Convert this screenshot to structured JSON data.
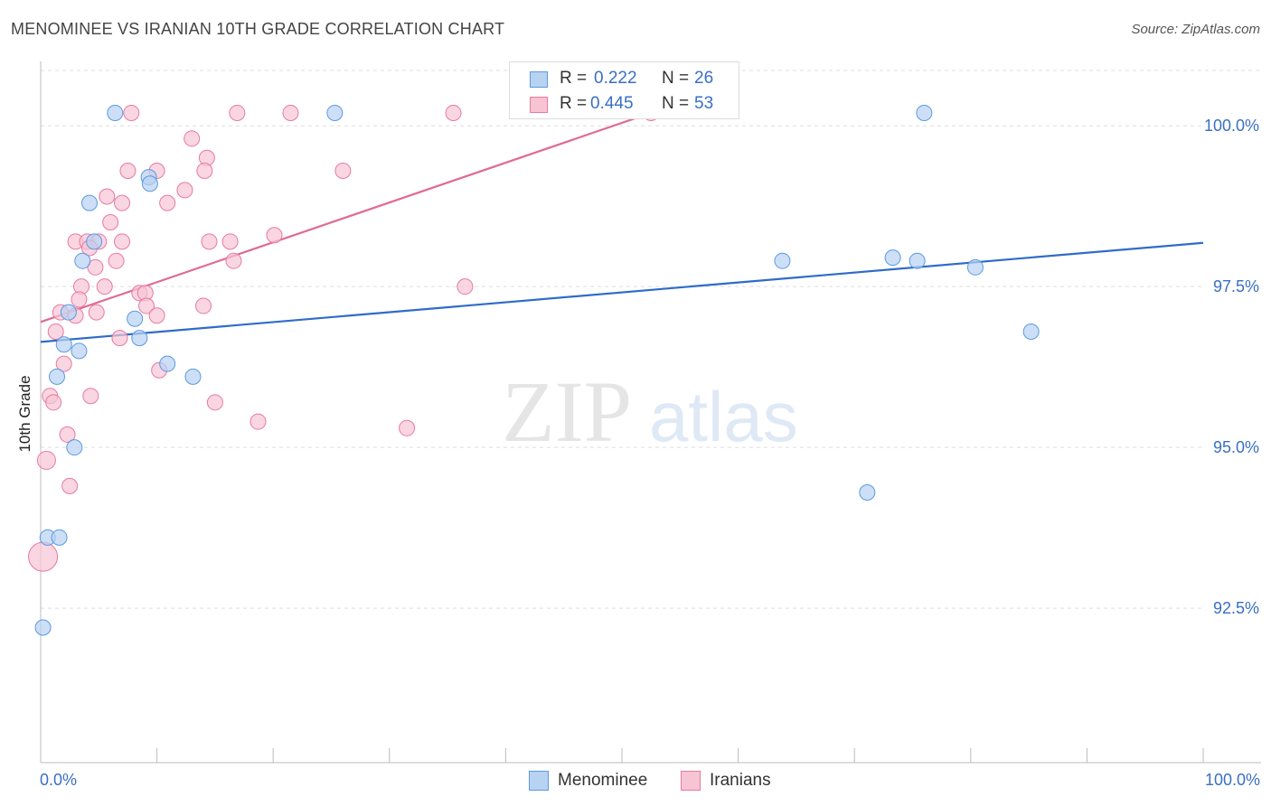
{
  "title": "MENOMINEE VS IRANIAN 10TH GRADE CORRELATION CHART",
  "source": "Source: ZipAtlas.com",
  "watermark": {
    "zip": "ZIP",
    "atlas": "atlas"
  },
  "legend_stats": [
    {
      "r_label": "R =",
      "r_value": "0.222",
      "n_label": "N =",
      "n_value": "26"
    },
    {
      "r_label": "R =",
      "r_value": "0.445",
      "n_label": "N =",
      "n_value": "53"
    }
  ],
  "chart_data": {
    "type": "scatter",
    "title": "MENOMINEE VS IRANIAN 10TH GRADE CORRELATION CHART",
    "xlabel": "",
    "ylabel": "10th Grade",
    "xlim": [
      0,
      100
    ],
    "ylim": [
      90.1,
      101.0
    ],
    "x_tick_labels": [
      "0.0%",
      "100.0%"
    ],
    "y_ticks": [
      92.5,
      95.0,
      97.5,
      100.0
    ],
    "y_tick_labels": [
      "92.5%",
      "95.0%",
      "97.5%",
      "100.0%"
    ],
    "grid": true,
    "legend_position": "bottom",
    "series": [
      {
        "name": "Menominee",
        "color": "#5b9ae0",
        "fill": "#b8d2f2",
        "trend": {
          "x": [
            0,
            100
          ],
          "y": [
            96.64,
            98.18
          ]
        },
        "points": [
          {
            "x": 6.4,
            "y": 100.2
          },
          {
            "x": 25.3,
            "y": 100.2
          },
          {
            "x": 76.0,
            "y": 100.2
          },
          {
            "x": 9.3,
            "y": 99.2
          },
          {
            "x": 9.4,
            "y": 99.1
          },
          {
            "x": 4.2,
            "y": 98.8
          },
          {
            "x": 4.6,
            "y": 98.2
          },
          {
            "x": 3.6,
            "y": 97.9
          },
          {
            "x": 63.8,
            "y": 97.9
          },
          {
            "x": 73.3,
            "y": 97.95
          },
          {
            "x": 75.4,
            "y": 97.9
          },
          {
            "x": 80.4,
            "y": 97.8
          },
          {
            "x": 2.4,
            "y": 97.1
          },
          {
            "x": 8.1,
            "y": 97.0
          },
          {
            "x": 8.5,
            "y": 96.7
          },
          {
            "x": 2.0,
            "y": 96.6
          },
          {
            "x": 3.3,
            "y": 96.5
          },
          {
            "x": 85.2,
            "y": 96.8
          },
          {
            "x": 10.9,
            "y": 96.3
          },
          {
            "x": 13.1,
            "y": 96.1
          },
          {
            "x": 1.4,
            "y": 96.1
          },
          {
            "x": 2.9,
            "y": 95.0
          },
          {
            "x": 71.1,
            "y": 94.3
          },
          {
            "x": 0.6,
            "y": 93.6
          },
          {
            "x": 1.6,
            "y": 93.6
          },
          {
            "x": 0.2,
            "y": 92.2
          }
        ]
      },
      {
        "name": "Iranians",
        "color": "#e87a9f",
        "fill": "#f7c4d4",
        "trend": {
          "x": [
            0,
            52.5
          ],
          "y": [
            96.95,
            100.2
          ]
        },
        "points": [
          {
            "x": 7.8,
            "y": 100.2
          },
          {
            "x": 16.9,
            "y": 100.2
          },
          {
            "x": 21.5,
            "y": 100.2
          },
          {
            "x": 35.5,
            "y": 100.2
          },
          {
            "x": 52.5,
            "y": 100.2
          },
          {
            "x": 13.0,
            "y": 99.8
          },
          {
            "x": 14.3,
            "y": 99.5
          },
          {
            "x": 14.1,
            "y": 99.3
          },
          {
            "x": 7.5,
            "y": 99.3
          },
          {
            "x": 10.0,
            "y": 99.3
          },
          {
            "x": 26.0,
            "y": 99.3
          },
          {
            "x": 12.4,
            "y": 99.0
          },
          {
            "x": 5.7,
            "y": 98.9
          },
          {
            "x": 10.9,
            "y": 98.8
          },
          {
            "x": 6.0,
            "y": 98.5
          },
          {
            "x": 20.1,
            "y": 98.3
          },
          {
            "x": 3.0,
            "y": 98.2
          },
          {
            "x": 4.0,
            "y": 98.2
          },
          {
            "x": 5.0,
            "y": 98.2
          },
          {
            "x": 7.0,
            "y": 98.2
          },
          {
            "x": 14.5,
            "y": 98.2
          },
          {
            "x": 16.3,
            "y": 98.2
          },
          {
            "x": 4.2,
            "y": 98.1
          },
          {
            "x": 6.5,
            "y": 97.9
          },
          {
            "x": 16.6,
            "y": 97.9
          },
          {
            "x": 4.7,
            "y": 97.8
          },
          {
            "x": 3.5,
            "y": 97.5
          },
          {
            "x": 5.5,
            "y": 97.5
          },
          {
            "x": 36.5,
            "y": 97.5
          },
          {
            "x": 8.5,
            "y": 97.4
          },
          {
            "x": 9.0,
            "y": 97.4
          },
          {
            "x": 3.3,
            "y": 97.3
          },
          {
            "x": 1.7,
            "y": 97.1
          },
          {
            "x": 4.8,
            "y": 97.1
          },
          {
            "x": 3.0,
            "y": 97.05
          },
          {
            "x": 9.1,
            "y": 97.2
          },
          {
            "x": 14.0,
            "y": 97.2
          },
          {
            "x": 10.0,
            "y": 97.05
          },
          {
            "x": 1.3,
            "y": 96.8
          },
          {
            "x": 6.8,
            "y": 96.7
          },
          {
            "x": 2.0,
            "y": 96.3
          },
          {
            "x": 10.2,
            "y": 96.2
          },
          {
            "x": 0.8,
            "y": 95.8
          },
          {
            "x": 1.1,
            "y": 95.7
          },
          {
            "x": 4.3,
            "y": 95.8
          },
          {
            "x": 15.0,
            "y": 95.7
          },
          {
            "x": 18.7,
            "y": 95.4
          },
          {
            "x": 31.5,
            "y": 95.3
          },
          {
            "x": 2.3,
            "y": 95.2
          },
          {
            "x": 0.5,
            "y": 94.8
          },
          {
            "x": 2.5,
            "y": 94.4
          },
          {
            "x": 0.2,
            "y": 93.3
          },
          {
            "x": 7.0,
            "y": 98.8
          }
        ]
      }
    ]
  }
}
